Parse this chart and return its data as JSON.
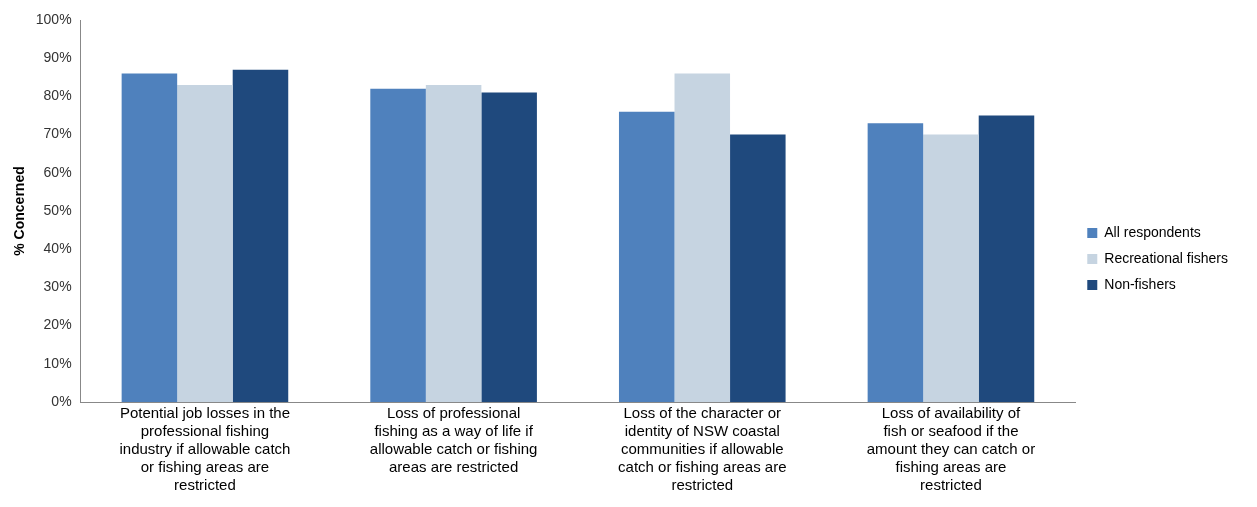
{
  "chart_data": {
    "type": "bar",
    "ylabel": "% Concerned",
    "categories": [
      "Potential job losses in the professional fishing industry if allowable catch or fishing areas are restricted",
      "Loss of professional fishing as a way of life if allowable catch or fishing areas are restricted",
      "Loss of the character or identity of NSW coastal communities if allowable catch or fishing areas are restricted",
      "Loss of availability of fish or seafood if the amount they can catch or fishing areas are restricted"
    ],
    "series": [
      {
        "name": "All respondents",
        "color": "#4f81bd",
        "values": [
          86,
          82,
          76,
          73
        ]
      },
      {
        "name": "Recreational fishers",
        "color": "#c6d4e1",
        "values": [
          83,
          83,
          86,
          70
        ]
      },
      {
        "name": "Non-fishers",
        "color": "#1f497d",
        "values": [
          87,
          81,
          70,
          75
        ]
      }
    ],
    "ylim": [
      0,
      100
    ],
    "yticks": [
      {
        "value": 0,
        "label": "0%"
      },
      {
        "value": 10,
        "label": "10%"
      },
      {
        "value": 20,
        "label": "20%"
      },
      {
        "value": 30,
        "label": "30%"
      },
      {
        "value": 40,
        "label": "40%"
      },
      {
        "value": 50,
        "label": "50%"
      },
      {
        "value": 60,
        "label": "60%"
      },
      {
        "value": 70,
        "label": "70%"
      },
      {
        "value": 80,
        "label": "80%"
      },
      {
        "value": 90,
        "label": "90%"
      },
      {
        "value": 100,
        "label": "100%"
      }
    ],
    "grid": false,
    "legend": "right"
  }
}
